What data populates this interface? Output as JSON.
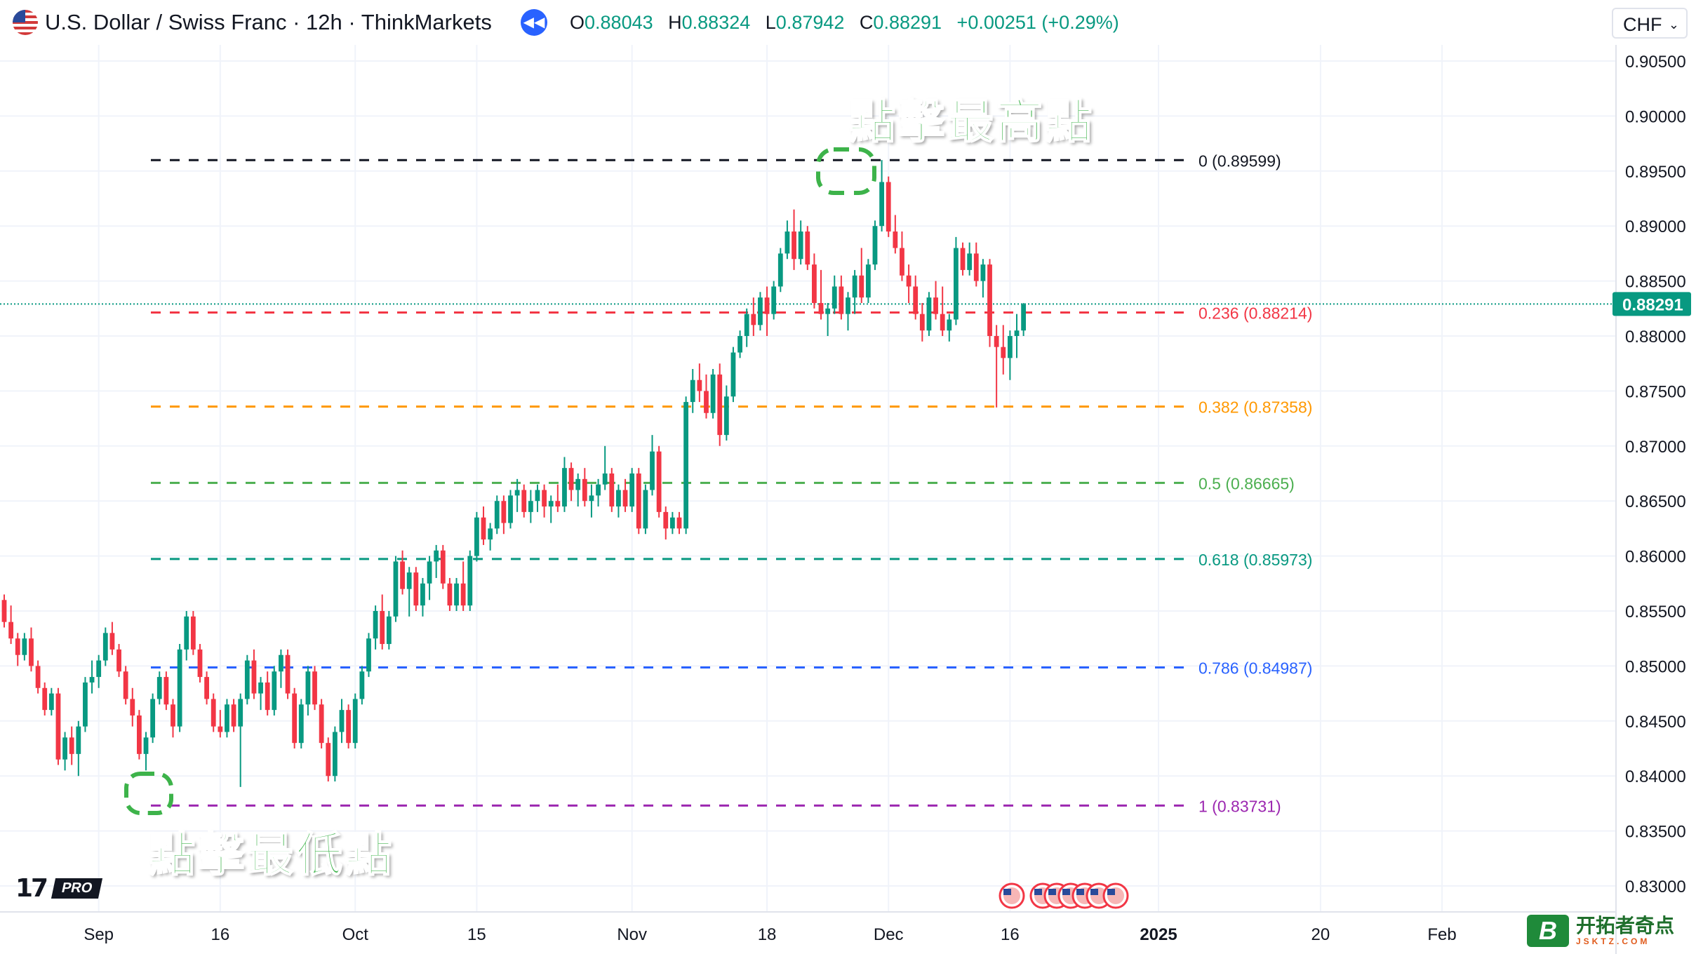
{
  "header": {
    "title": "U.S. Dollar / Swiss Franc · 12h · ThinkMarkets",
    "ohlc": [
      {
        "k": "O",
        "v": "0.88043"
      },
      {
        "k": "H",
        "v": "0.88324"
      },
      {
        "k": "L",
        "v": "0.87942"
      },
      {
        "k": "C",
        "v": "0.88291"
      }
    ],
    "change": "+0.00251 (+0.29%)",
    "currency": "CHF",
    "up_color": "#089981",
    "down_color": "#f23645"
  },
  "annotations": {
    "high_label": "點擊最高點",
    "low_label": "點擊最低點"
  },
  "logo": {
    "mark": "17",
    "badge": "PRO"
  },
  "watermark": {
    "title": "开拓者奇点",
    "subtitle": "JSKTZ.COM",
    "letter": "B"
  },
  "chart_data": {
    "type": "candlestick",
    "symbol": "USD/CHF",
    "timeframe": "12h",
    "ylim": [
      0.8285,
      0.9075
    ],
    "y_ticks": [
      "0.90500",
      "0.90000",
      "0.89500",
      "0.89000",
      "0.88500",
      "0.88000",
      "0.87500",
      "0.87000",
      "0.86500",
      "0.86000",
      "0.85500",
      "0.85000",
      "0.84500",
      "0.84000",
      "0.83500",
      "0.83000"
    ],
    "x_labels": [
      {
        "label": "Sep",
        "i": 14
      },
      {
        "label": "16",
        "i": 32
      },
      {
        "label": "Oct",
        "i": 52
      },
      {
        "label": "15",
        "i": 70
      },
      {
        "label": "Nov",
        "i": 93
      },
      {
        "label": "18",
        "i": 113
      },
      {
        "label": "Dec",
        "i": 131
      },
      {
        "label": "16",
        "i": 149
      },
      {
        "label": "2025",
        "i": 171
      },
      {
        "label": "20",
        "i": 195
      },
      {
        "label": "Feb",
        "i": 213
      }
    ],
    "x_slots": 226,
    "last_price": "0.88291",
    "fib_levels": [
      {
        "ratio": "0",
        "price": 0.89599,
        "label": "0 (0.89599)",
        "color": "#131722"
      },
      {
        "ratio": "0.236",
        "price": 0.88214,
        "label": "0.236 (0.88214)",
        "color": "#f23645"
      },
      {
        "ratio": "0.382",
        "price": 0.87358,
        "label": "0.382 (0.87358)",
        "color": "#ff9800"
      },
      {
        "ratio": "0.5",
        "price": 0.86665,
        "label": "0.5 (0.86665)",
        "color": "#4caf50"
      },
      {
        "ratio": "0.618",
        "price": 0.85973,
        "label": "0.618 (0.85973)",
        "color": "#089981"
      },
      {
        "ratio": "0.786",
        "price": 0.84987,
        "label": "0.786 (0.84987)",
        "color": "#2962ff"
      },
      {
        "ratio": "1",
        "price": 0.83731,
        "label": "1 (0.83731)",
        "color": "#9c27b0"
      }
    ],
    "candles": [
      [
        0.856,
        0.8565,
        0.8535,
        0.854
      ],
      [
        0.854,
        0.8555,
        0.852,
        0.8525
      ],
      [
        0.8525,
        0.853,
        0.85,
        0.851
      ],
      [
        0.851,
        0.853,
        0.8505,
        0.8525
      ],
      [
        0.8525,
        0.8535,
        0.8495,
        0.85
      ],
      [
        0.85,
        0.8505,
        0.8475,
        0.848
      ],
      [
        0.848,
        0.8485,
        0.8455,
        0.846
      ],
      [
        0.846,
        0.848,
        0.8455,
        0.8475
      ],
      [
        0.8475,
        0.848,
        0.841,
        0.8415
      ],
      [
        0.8415,
        0.844,
        0.8405,
        0.8435
      ],
      [
        0.8435,
        0.8445,
        0.841,
        0.842
      ],
      [
        0.842,
        0.845,
        0.84,
        0.8445
      ],
      [
        0.8445,
        0.849,
        0.844,
        0.8485
      ],
      [
        0.8485,
        0.8505,
        0.8475,
        0.849
      ],
      [
        0.849,
        0.851,
        0.848,
        0.8505
      ],
      [
        0.8505,
        0.8535,
        0.85,
        0.853
      ],
      [
        0.853,
        0.854,
        0.851,
        0.8515
      ],
      [
        0.8515,
        0.852,
        0.849,
        0.8495
      ],
      [
        0.8495,
        0.85,
        0.8465,
        0.847
      ],
      [
        0.847,
        0.848,
        0.8445,
        0.8455
      ],
      [
        0.8455,
        0.846,
        0.8415,
        0.842
      ],
      [
        0.842,
        0.844,
        0.8405,
        0.8435
      ],
      [
        0.8435,
        0.8475,
        0.843,
        0.847
      ],
      [
        0.847,
        0.8495,
        0.8465,
        0.849
      ],
      [
        0.849,
        0.8495,
        0.846,
        0.8465
      ],
      [
        0.8465,
        0.847,
        0.8435,
        0.8445
      ],
      [
        0.8445,
        0.852,
        0.844,
        0.8515
      ],
      [
        0.8515,
        0.855,
        0.8505,
        0.8545
      ],
      [
        0.8545,
        0.855,
        0.851,
        0.8515
      ],
      [
        0.8515,
        0.852,
        0.8485,
        0.849
      ],
      [
        0.849,
        0.8495,
        0.8465,
        0.847
      ],
      [
        0.847,
        0.8475,
        0.844,
        0.8445
      ],
      [
        0.8445,
        0.846,
        0.8435,
        0.844
      ],
      [
        0.844,
        0.847,
        0.8435,
        0.8465
      ],
      [
        0.8465,
        0.847,
        0.844,
        0.8445
      ],
      [
        0.8445,
        0.8475,
        0.839,
        0.847
      ],
      [
        0.847,
        0.851,
        0.8465,
        0.8505
      ],
      [
        0.8505,
        0.8515,
        0.847,
        0.8475
      ],
      [
        0.8475,
        0.849,
        0.846,
        0.8485
      ],
      [
        0.8485,
        0.8495,
        0.8455,
        0.846
      ],
      [
        0.846,
        0.85,
        0.8455,
        0.8495
      ],
      [
        0.8495,
        0.8515,
        0.848,
        0.851
      ],
      [
        0.851,
        0.8515,
        0.847,
        0.8475
      ],
      [
        0.8475,
        0.848,
        0.8425,
        0.843
      ],
      [
        0.843,
        0.847,
        0.8425,
        0.8465
      ],
      [
        0.8465,
        0.85,
        0.8455,
        0.8495
      ],
      [
        0.8495,
        0.85,
        0.846,
        0.8465
      ],
      [
        0.8465,
        0.847,
        0.8425,
        0.843
      ],
      [
        0.843,
        0.8435,
        0.8395,
        0.84
      ],
      [
        0.84,
        0.8445,
        0.8395,
        0.844
      ],
      [
        0.844,
        0.847,
        0.843,
        0.846
      ],
      [
        0.846,
        0.8465,
        0.8425,
        0.843
      ],
      [
        0.843,
        0.8475,
        0.8425,
        0.847
      ],
      [
        0.847,
        0.85,
        0.8465,
        0.8495
      ],
      [
        0.8495,
        0.853,
        0.849,
        0.8525
      ],
      [
        0.8525,
        0.8555,
        0.8515,
        0.855
      ],
      [
        0.855,
        0.8565,
        0.8515,
        0.852
      ],
      [
        0.852,
        0.855,
        0.8515,
        0.8545
      ],
      [
        0.8545,
        0.86,
        0.854,
        0.8595
      ],
      [
        0.8595,
        0.8605,
        0.8565,
        0.857
      ],
      [
        0.857,
        0.859,
        0.8545,
        0.8585
      ],
      [
        0.8585,
        0.859,
        0.855,
        0.8555
      ],
      [
        0.8555,
        0.858,
        0.8545,
        0.8575
      ],
      [
        0.8575,
        0.86,
        0.856,
        0.8595
      ],
      [
        0.8595,
        0.861,
        0.858,
        0.8605
      ],
      [
        0.8605,
        0.861,
        0.857,
        0.8575
      ],
      [
        0.8575,
        0.858,
        0.855,
        0.8555
      ],
      [
        0.8555,
        0.858,
        0.855,
        0.8575
      ],
      [
        0.8575,
        0.8595,
        0.855,
        0.8555
      ],
      [
        0.8555,
        0.8605,
        0.855,
        0.86
      ],
      [
        0.86,
        0.864,
        0.8595,
        0.8635
      ],
      [
        0.8635,
        0.8645,
        0.861,
        0.8615
      ],
      [
        0.8615,
        0.863,
        0.8605,
        0.8625
      ],
      [
        0.8625,
        0.8655,
        0.862,
        0.865
      ],
      [
        0.865,
        0.8655,
        0.862,
        0.863
      ],
      [
        0.863,
        0.866,
        0.8625,
        0.8655
      ],
      [
        0.8655,
        0.867,
        0.864,
        0.866
      ],
      [
        0.866,
        0.8665,
        0.8635,
        0.864
      ],
      [
        0.864,
        0.866,
        0.863,
        0.865
      ],
      [
        0.865,
        0.8665,
        0.864,
        0.866
      ],
      [
        0.866,
        0.8665,
        0.8635,
        0.8645
      ],
      [
        0.8645,
        0.8655,
        0.863,
        0.865
      ],
      [
        0.865,
        0.8665,
        0.864,
        0.8645
      ],
      [
        0.8645,
        0.869,
        0.864,
        0.868
      ],
      [
        0.868,
        0.8685,
        0.865,
        0.866
      ],
      [
        0.866,
        0.8675,
        0.8645,
        0.867
      ],
      [
        0.867,
        0.868,
        0.8645,
        0.865
      ],
      [
        0.865,
        0.8665,
        0.8635,
        0.8655
      ],
      [
        0.8655,
        0.867,
        0.8645,
        0.8665
      ],
      [
        0.8665,
        0.87,
        0.866,
        0.8675
      ],
      [
        0.8675,
        0.868,
        0.864,
        0.8645
      ],
      [
        0.8645,
        0.8665,
        0.8635,
        0.866
      ],
      [
        0.866,
        0.867,
        0.864,
        0.8645
      ],
      [
        0.8645,
        0.868,
        0.864,
        0.8675
      ],
      [
        0.8675,
        0.868,
        0.862,
        0.8625
      ],
      [
        0.8625,
        0.8665,
        0.862,
        0.866
      ],
      [
        0.866,
        0.871,
        0.8655,
        0.8695
      ],
      [
        0.8695,
        0.87,
        0.8635,
        0.864
      ],
      [
        0.864,
        0.8645,
        0.8615,
        0.8625
      ],
      [
        0.8625,
        0.864,
        0.862,
        0.8635
      ],
      [
        0.8635,
        0.864,
        0.862,
        0.8625
      ],
      [
        0.8625,
        0.8745,
        0.862,
        0.874
      ],
      [
        0.874,
        0.877,
        0.873,
        0.876
      ],
      [
        0.876,
        0.8775,
        0.874,
        0.875
      ],
      [
        0.875,
        0.8765,
        0.8725,
        0.873
      ],
      [
        0.873,
        0.877,
        0.8725,
        0.8765
      ],
      [
        0.8765,
        0.8775,
        0.87,
        0.871
      ],
      [
        0.871,
        0.8755,
        0.8705,
        0.8745
      ],
      [
        0.8745,
        0.879,
        0.874,
        0.8785
      ],
      [
        0.8785,
        0.8805,
        0.878,
        0.88
      ],
      [
        0.88,
        0.8825,
        0.879,
        0.882
      ],
      [
        0.882,
        0.8835,
        0.88,
        0.881
      ],
      [
        0.881,
        0.884,
        0.8805,
        0.8835
      ],
      [
        0.8835,
        0.8845,
        0.88,
        0.882
      ],
      [
        0.882,
        0.885,
        0.8815,
        0.8845
      ],
      [
        0.8845,
        0.888,
        0.884,
        0.8875
      ],
      [
        0.8875,
        0.8905,
        0.887,
        0.8895
      ],
      [
        0.8895,
        0.8915,
        0.886,
        0.887
      ],
      [
        0.887,
        0.8905,
        0.8865,
        0.8895
      ],
      [
        0.8895,
        0.89,
        0.886,
        0.8865
      ],
      [
        0.8865,
        0.8875,
        0.8825,
        0.883
      ],
      [
        0.883,
        0.886,
        0.8815,
        0.882
      ],
      [
        0.882,
        0.883,
        0.88,
        0.8825
      ],
      [
        0.8825,
        0.8855,
        0.882,
        0.8845
      ],
      [
        0.8845,
        0.8855,
        0.8815,
        0.882
      ],
      [
        0.882,
        0.884,
        0.8805,
        0.8835
      ],
      [
        0.8835,
        0.886,
        0.882,
        0.8855
      ],
      [
        0.8855,
        0.888,
        0.883,
        0.8835
      ],
      [
        0.8835,
        0.887,
        0.883,
        0.8865
      ],
      [
        0.8865,
        0.8905,
        0.886,
        0.89
      ],
      [
        0.89,
        0.896,
        0.8895,
        0.894
      ],
      [
        0.894,
        0.8945,
        0.889,
        0.8895
      ],
      [
        0.8895,
        0.891,
        0.8875,
        0.888
      ],
      [
        0.888,
        0.8895,
        0.885,
        0.8855
      ],
      [
        0.8855,
        0.8865,
        0.883,
        0.8845
      ],
      [
        0.8845,
        0.8855,
        0.8815,
        0.882
      ],
      [
        0.882,
        0.883,
        0.8795,
        0.8805
      ],
      [
        0.8805,
        0.884,
        0.88,
        0.8835
      ],
      [
        0.8835,
        0.885,
        0.8815,
        0.882
      ],
      [
        0.882,
        0.8845,
        0.88,
        0.8805
      ],
      [
        0.8805,
        0.882,
        0.8795,
        0.8815
      ],
      [
        0.8815,
        0.889,
        0.881,
        0.888
      ],
      [
        0.888,
        0.8885,
        0.8855,
        0.886
      ],
      [
        0.886,
        0.8885,
        0.8855,
        0.8875
      ],
      [
        0.8875,
        0.8885,
        0.8845,
        0.885
      ],
      [
        0.885,
        0.887,
        0.8835,
        0.8865
      ],
      [
        0.8865,
        0.887,
        0.879,
        0.88
      ],
      [
        0.88,
        0.881,
        0.8735,
        0.879
      ],
      [
        0.879,
        0.881,
        0.8765,
        0.878
      ],
      [
        0.878,
        0.8805,
        0.876,
        0.88
      ],
      [
        0.88,
        0.882,
        0.878,
        0.8805
      ],
      [
        0.8805,
        0.883,
        0.88,
        0.8829
      ]
    ]
  }
}
